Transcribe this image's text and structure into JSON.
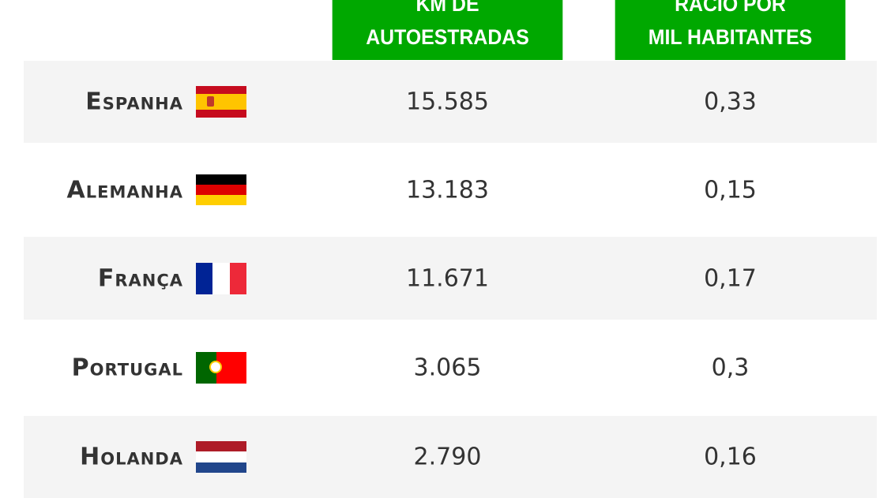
{
  "chart_data": {
    "type": "table",
    "columns": [
      "KM DE AUTOESTRADAS",
      "RACIO POR MIL HABITANTES"
    ],
    "column_lines": [
      [
        "KM DE",
        "AUTOESTRADAS"
      ],
      [
        "RACIO POR",
        "MIL HABITANTES"
      ]
    ],
    "rows": [
      {
        "country": "Espanha",
        "flag": "spain-flag",
        "km": "15.585",
        "ratio": "0,33"
      },
      {
        "country": "Alemanha",
        "flag": "germany-flag",
        "km": "13.183",
        "ratio": "0,15"
      },
      {
        "country": "França",
        "flag": "france-flag",
        "km": "11.671",
        "ratio": "0,17"
      },
      {
        "country": "Portugal",
        "flag": "portugal-flag",
        "km": "3.065",
        "ratio": "0,3"
      },
      {
        "country": "Holanda",
        "flag": "netherlands-flag",
        "km": "2.790",
        "ratio": "0,16"
      }
    ]
  },
  "colors": {
    "header": "#00a800",
    "row_alt": "#f4f4f4",
    "text": "#333333"
  }
}
